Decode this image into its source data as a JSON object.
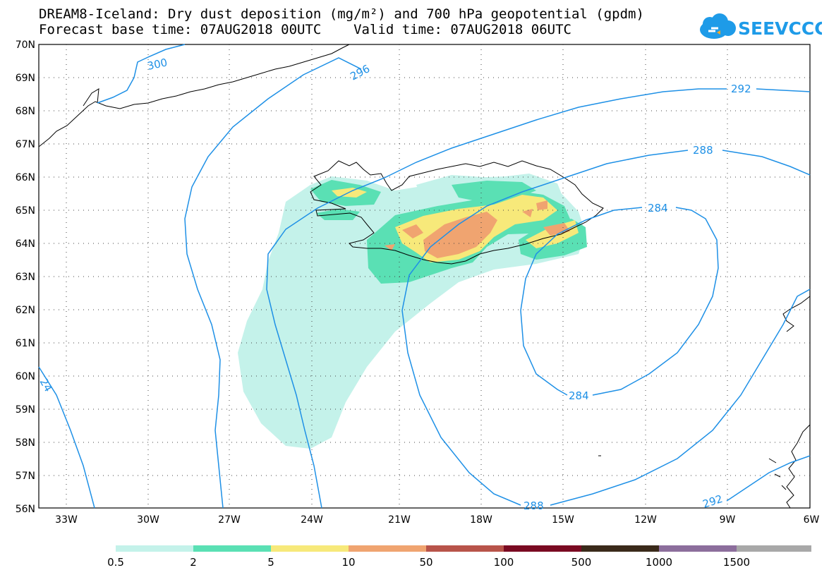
{
  "header": {
    "title_line1": "DREAM8-Iceland: Dry dust deposition (mg/m²) and 700 hPa geopotential (gpdm)",
    "title_line2": "Forecast base time: 07AUG2018 00UTC    Valid time: 07AUG2018 06UTC"
  },
  "logo": {
    "text": "SEEVCCC",
    "color": "#1E9BE8"
  },
  "map": {
    "lon_range": [
      -34.5,
      -6
    ],
    "lat_range": [
      56,
      70
    ],
    "lon_ticks": [
      "33W",
      "30W",
      "27W",
      "24W",
      "21W",
      "18W",
      "15W",
      "12W",
      "9W",
      "6W"
    ],
    "lat_ticks": [
      "70N",
      "69N",
      "68N",
      "67N",
      "66N",
      "65N",
      "64N",
      "63N",
      "62N",
      "61N",
      "60N",
      "59N",
      "58N",
      "57N",
      "56N"
    ],
    "grid": "dotted",
    "contour_color": "#1E90E6",
    "coastline_color": "#000000",
    "contour_labels": [
      "300",
      "296",
      "292",
      "288",
      "284",
      "284",
      "288",
      "292",
      "24"
    ]
  },
  "legend": {
    "colors": [
      "#C4F2EA",
      "#5AE0B4",
      "#F7E97A",
      "#F0A470",
      "#B8544A",
      "#7A0A22",
      "#3A2A1A",
      "#8C6E9C",
      "#A8A8A8"
    ],
    "labels": [
      "0.5",
      "2",
      "5",
      "10",
      "50",
      "100",
      "500",
      "1000",
      "1500"
    ]
  }
}
